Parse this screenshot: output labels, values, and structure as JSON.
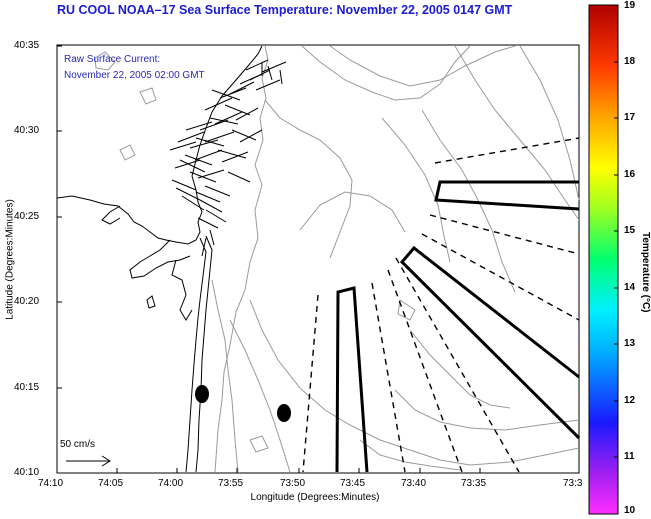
{
  "title": "RU COOL  NOAA–17  Sea Surface Temperature:  November 22, 2005 0147 GMT",
  "legend": {
    "line1": "Raw Surface Current:",
    "line2": "November 22, 2005 02:00 GMT",
    "scale_label": "50 cm/s"
  },
  "axes": {
    "xlabel": "Longitude (Degrees:Minutes)",
    "ylabel": "Latitude (Degrees:Minutes)",
    "x_ticks": [
      "74:10",
      "74:05",
      "74:00",
      "73:55",
      "73:50",
      "73:45",
      "73:40",
      "73:35",
      "73:3"
    ],
    "y_ticks": [
      "40:35",
      "40:30",
      "40:25",
      "40:20",
      "40:15",
      "40:10"
    ]
  },
  "colorbar": {
    "label": "Temperature (°C)",
    "ticks": [
      "19",
      "18",
      "17",
      "16",
      "15",
      "14",
      "13",
      "12",
      "11",
      "10"
    ]
  },
  "colors": {
    "title": "#1c1ccf",
    "legend_text": "#2a2ab8",
    "land_outline": "#000000",
    "bathymetry": "#9a9a9a",
    "vectors": "#000000"
  }
}
